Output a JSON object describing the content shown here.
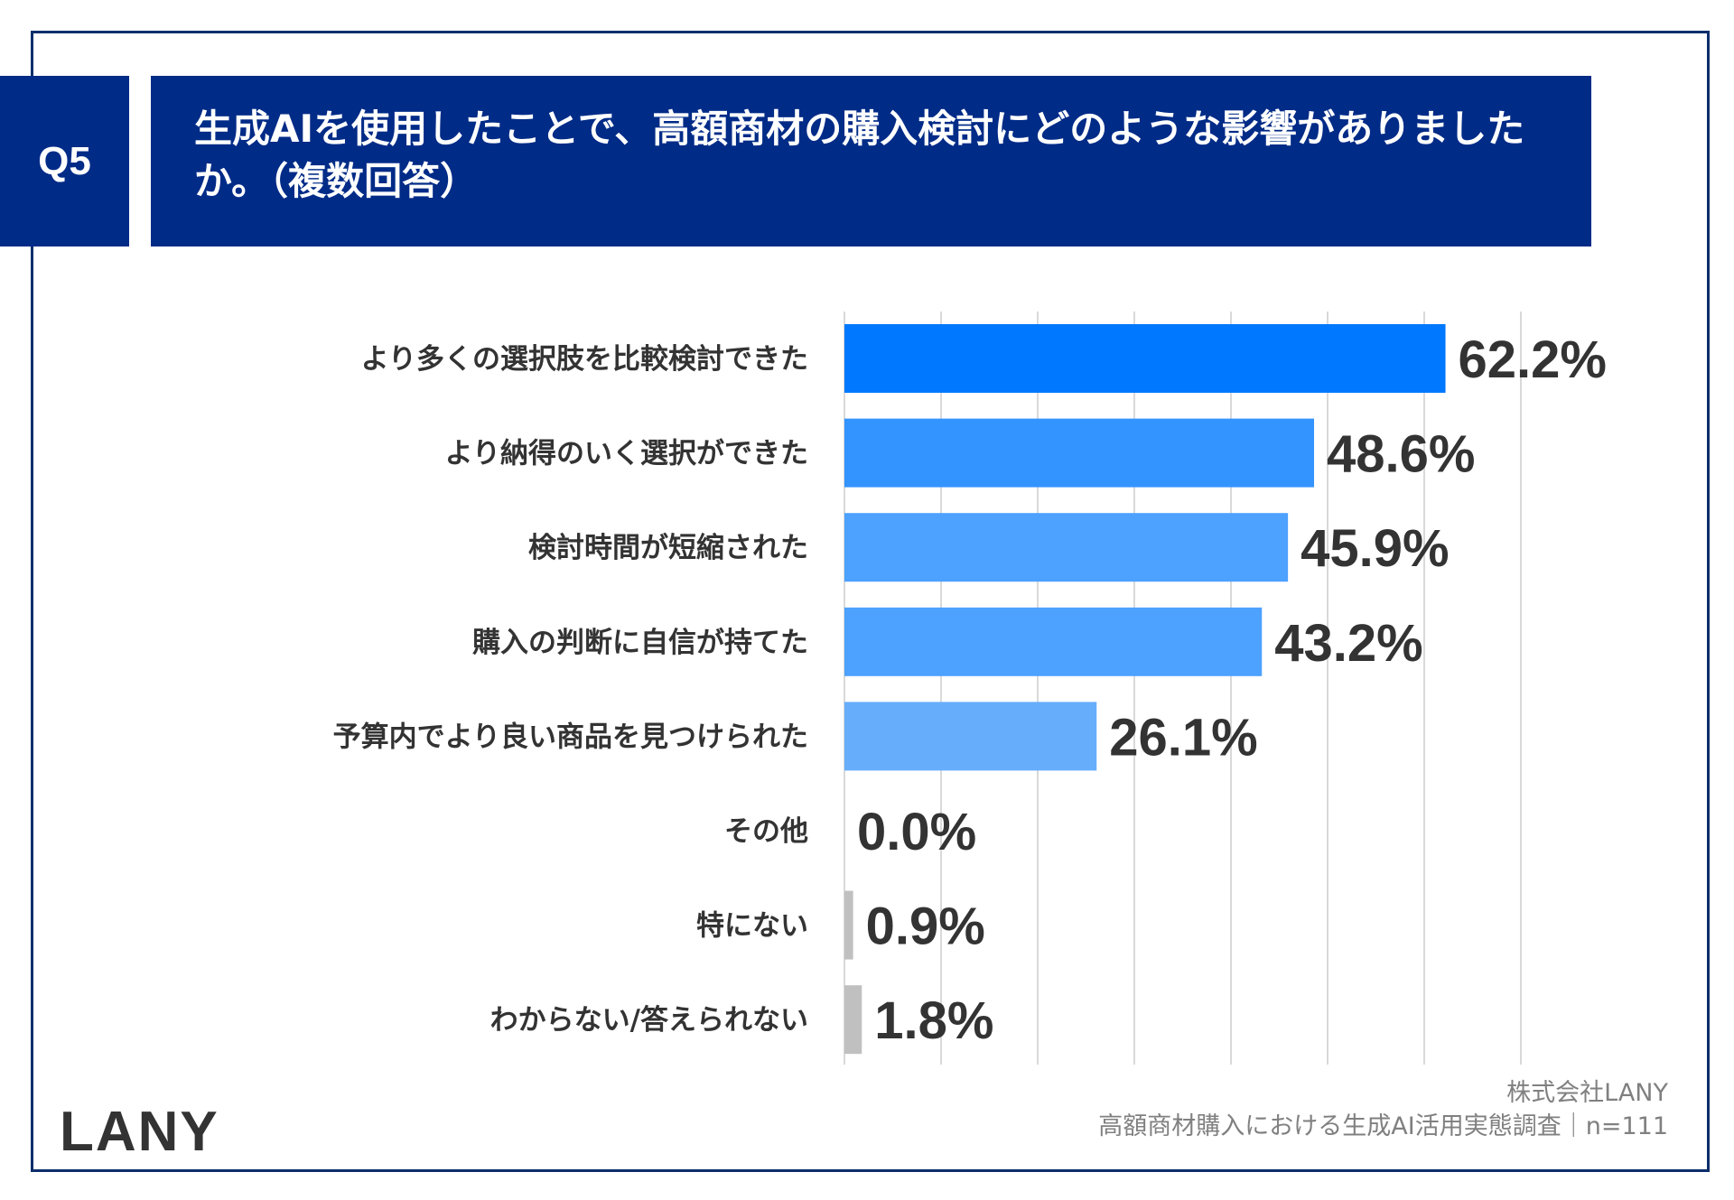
{
  "header": {
    "question_number": "Q5",
    "title": "生成AIを使用したことで、高額商材の購入検討にどのような影響がありましたか。（複数回答）"
  },
  "chart_data": {
    "type": "bar",
    "orientation": "horizontal",
    "title": "生成AIを使用したことで、高額商材の購入検討にどのような影響がありましたか。（複数回答）",
    "categories": [
      "より多くの選択肢を比較検討できた",
      "より納得のいく選択ができた",
      "検討時間が短縮された",
      "購入の判断に自信が持てた",
      "予算内でより良い商品を見つけられた",
      "その他",
      "特にない",
      "わからない/答えられない"
    ],
    "values": [
      62.2,
      48.6,
      45.9,
      43.2,
      26.1,
      0.0,
      0.9,
      1.8
    ],
    "value_labels": [
      "62.2%",
      "48.6%",
      "45.9%",
      "43.2%",
      "26.1%",
      "0.0%",
      "0.9%",
      "1.8%"
    ],
    "colors": [
      "#0078ff",
      "#3393ff",
      "#4da1ff",
      "#4da1ff",
      "#66aefc",
      "#c0c0c0",
      "#c0c0c0",
      "#c0c0c0"
    ],
    "xlim": [
      0,
      70
    ],
    "grid": true,
    "grid_step": 10,
    "unit": "%"
  },
  "footer": {
    "logo": "LANY",
    "company": "株式会社LANY",
    "source": "高額商材購入における生成AI活用実態調査｜n=111"
  }
}
